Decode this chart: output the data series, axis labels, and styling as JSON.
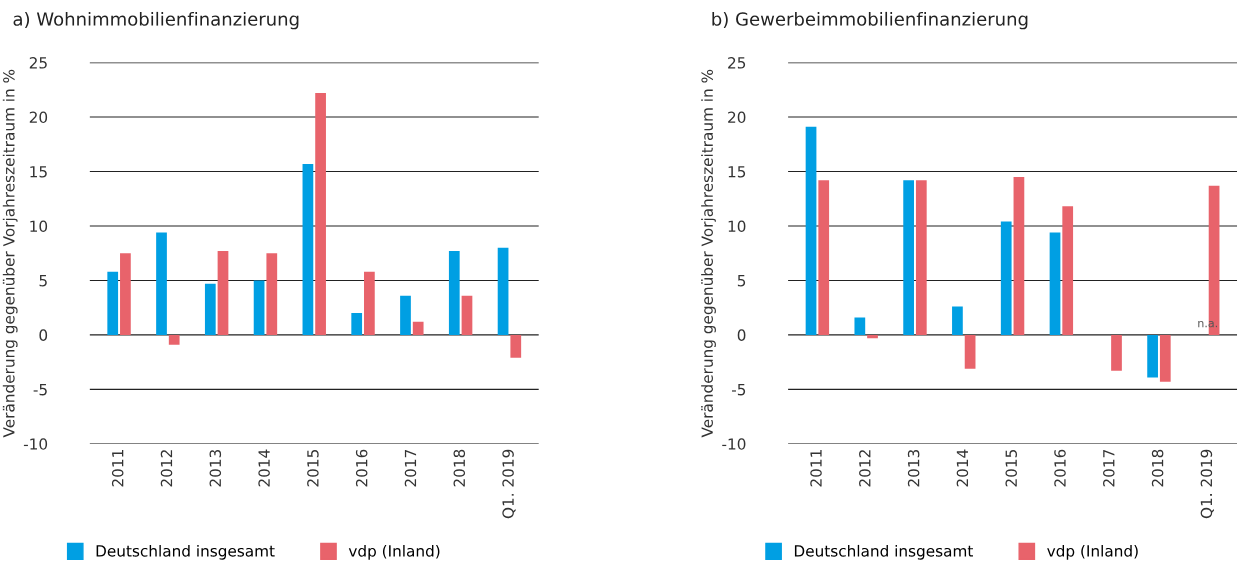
{
  "chart_data": [
    {
      "type": "bar",
      "title": "a) Wohnimmobilienfinanzierung",
      "ylabel": "Veränderung gegenüber Vorjahreszeitraum in %",
      "categories": [
        "2011",
        "2012",
        "2013",
        "2014",
        "2015",
        "2016",
        "2017",
        "2018",
        "Q1. 2019"
      ],
      "series": [
        {
          "name": "Deutschland insgesamt",
          "color": "#009fe3",
          "values": [
            5.8,
            9.4,
            4.7,
            5.0,
            15.7,
            2.0,
            3.6,
            7.7,
            8.0
          ]
        },
        {
          "name": "vdp (Inland)",
          "color": "#e8636b",
          "values": [
            7.5,
            -0.9,
            7.7,
            7.5,
            22.2,
            5.8,
            1.2,
            3.6,
            -2.1
          ]
        }
      ],
      "ylim": [
        -10,
        25
      ],
      "yticks": [
        -10,
        -5,
        0,
        5,
        10,
        15,
        20,
        25
      ],
      "grid": "y",
      "legend": "bottom"
    },
    {
      "type": "bar",
      "title": "b) Gewerbeimmobilienfinanzierung",
      "ylabel": "Veränderung gegenüber Vorjahreszeitraum in %",
      "categories": [
        "2011",
        "2012",
        "2013",
        "2014",
        "2015",
        "2016",
        "2017",
        "2018",
        "Q1. 2019"
      ],
      "series": [
        {
          "name": "Deutschland insgesamt",
          "color": "#009fe3",
          "values": [
            19.1,
            1.6,
            14.2,
            2.6,
            10.4,
            9.4,
            null,
            -3.9,
            null
          ]
        },
        {
          "name": "vdp (Inland)",
          "color": "#e8636b",
          "values": [
            14.2,
            -0.3,
            14.2,
            -3.1,
            14.5,
            11.8,
            -3.3,
            -4.3,
            13.7
          ]
        }
      ],
      "annotations": [
        {
          "text": "n.a.",
          "x": "Q1. 2019",
          "y": 0.5
        }
      ],
      "ylim": [
        -10,
        25
      ],
      "yticks": [
        -10,
        -5,
        0,
        5,
        10,
        15,
        20,
        25
      ],
      "grid": "y",
      "legend": "bottom"
    }
  ]
}
